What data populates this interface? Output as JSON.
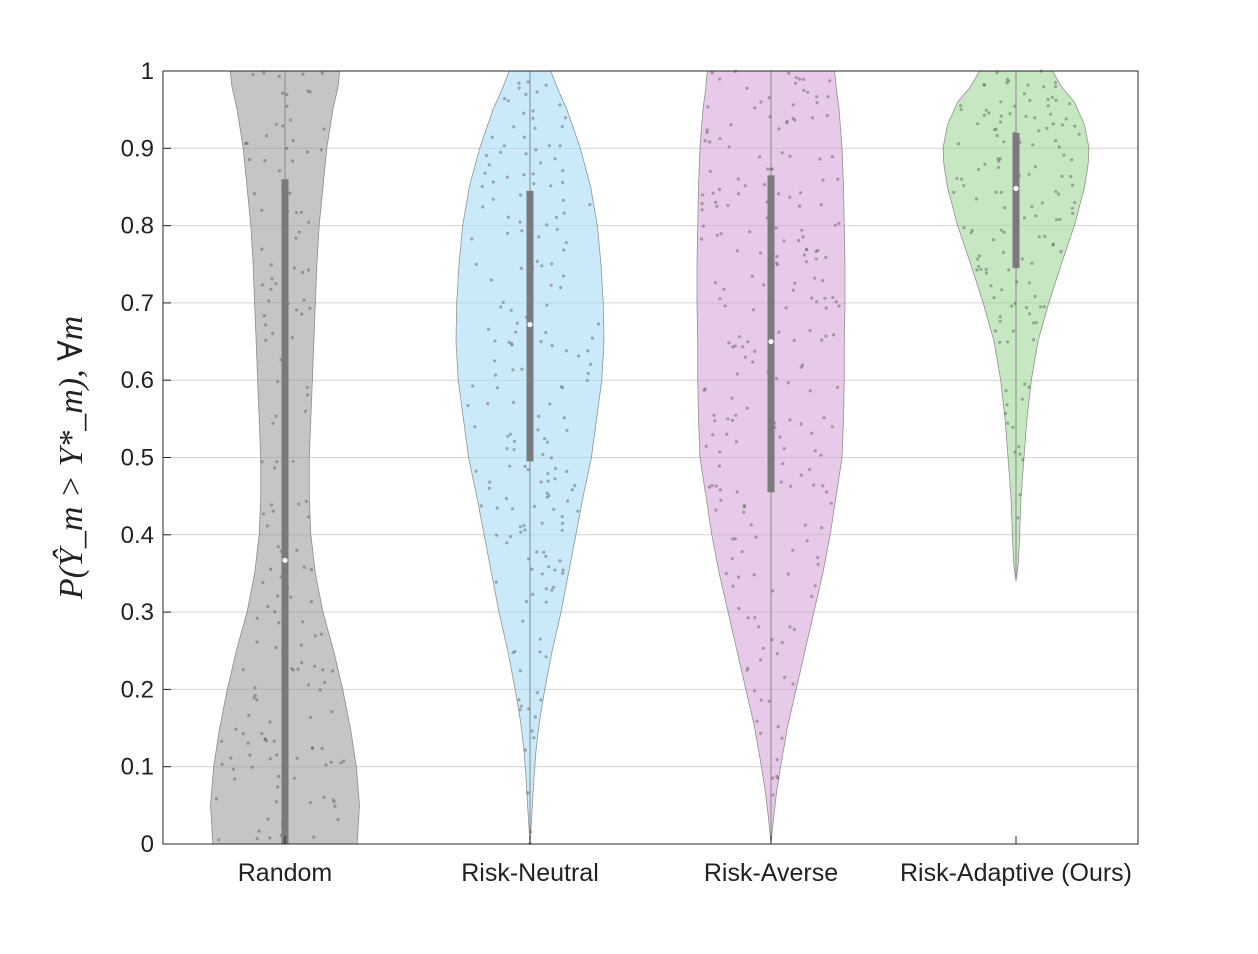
{
  "chart_data": {
    "type": "violin",
    "ylabel": "P(Ŷ_m > Y*_m),  ∀m",
    "ylim": [
      0,
      1
    ],
    "yticks": [
      0,
      0.1,
      0.2,
      0.3,
      0.4,
      0.5,
      0.6,
      0.7,
      0.8,
      0.9,
      1
    ],
    "ytick_labels": [
      "0",
      "0.1",
      "0.2",
      "0.3",
      "0.4",
      "0.5",
      "0.6",
      "0.7",
      "0.8",
      "0.9",
      "1"
    ],
    "grid": true,
    "categories": [
      "Random",
      "Risk-Neutral",
      "Risk-Averse",
      "Risk-Adaptive (Ours)"
    ],
    "series": [
      {
        "color": "#9e9e9e",
        "median": 0.367,
        "q1": 0.0,
        "q3": 0.86,
        "density": [
          [
            0.0,
            0.95
          ],
          [
            0.05,
            0.98
          ],
          [
            0.1,
            0.94
          ],
          [
            0.15,
            0.86
          ],
          [
            0.2,
            0.76
          ],
          [
            0.25,
            0.64
          ],
          [
            0.3,
            0.5
          ],
          [
            0.35,
            0.4
          ],
          [
            0.4,
            0.34
          ],
          [
            0.45,
            0.32
          ],
          [
            0.5,
            0.32
          ],
          [
            0.55,
            0.34
          ],
          [
            0.6,
            0.36
          ],
          [
            0.65,
            0.38
          ],
          [
            0.7,
            0.4
          ],
          [
            0.75,
            0.42
          ],
          [
            0.8,
            0.45
          ],
          [
            0.85,
            0.5
          ],
          [
            0.9,
            0.55
          ],
          [
            0.95,
            0.63
          ],
          [
            0.98,
            0.7
          ],
          [
            1.0,
            0.72
          ]
        ]
      },
      {
        "color": "#a8dcf5",
        "median": 0.672,
        "q1": 0.495,
        "q3": 0.845,
        "density": [
          [
            0.0,
            0.0
          ],
          [
            0.03,
            0.02
          ],
          [
            0.08,
            0.05
          ],
          [
            0.12,
            0.08
          ],
          [
            0.16,
            0.13
          ],
          [
            0.2,
            0.2
          ],
          [
            0.25,
            0.3
          ],
          [
            0.3,
            0.42
          ],
          [
            0.35,
            0.52
          ],
          [
            0.4,
            0.62
          ],
          [
            0.45,
            0.72
          ],
          [
            0.5,
            0.83
          ],
          [
            0.55,
            0.9
          ],
          [
            0.6,
            0.97
          ],
          [
            0.65,
            1.0
          ],
          [
            0.7,
            0.99
          ],
          [
            0.75,
            0.96
          ],
          [
            0.8,
            0.91
          ],
          [
            0.85,
            0.82
          ],
          [
            0.9,
            0.68
          ],
          [
            0.95,
            0.5
          ],
          [
            0.98,
            0.36
          ],
          [
            1.0,
            0.28
          ]
        ]
      },
      {
        "color": "#d7a6d9",
        "median": 0.65,
        "q1": 0.455,
        "q3": 0.865,
        "density": [
          [
            0.0,
            0.0
          ],
          [
            0.03,
            0.03
          ],
          [
            0.07,
            0.08
          ],
          [
            0.1,
            0.13
          ],
          [
            0.15,
            0.22
          ],
          [
            0.2,
            0.34
          ],
          [
            0.25,
            0.46
          ],
          [
            0.3,
            0.58
          ],
          [
            0.35,
            0.7
          ],
          [
            0.4,
            0.8
          ],
          [
            0.45,
            0.88
          ],
          [
            0.5,
            0.96
          ],
          [
            0.55,
            0.98
          ],
          [
            0.6,
            0.99
          ],
          [
            0.65,
            0.99
          ],
          [
            0.7,
            1.0
          ],
          [
            0.75,
            1.0
          ],
          [
            0.8,
            0.99
          ],
          [
            0.85,
            0.98
          ],
          [
            0.9,
            0.96
          ],
          [
            0.95,
            0.92
          ],
          [
            0.98,
            0.88
          ],
          [
            1.0,
            0.86
          ]
        ]
      },
      {
        "color": "#a2d79b",
        "median": 0.848,
        "q1": 0.745,
        "q3": 0.92,
        "density": [
          [
            0.34,
            0.0
          ],
          [
            0.36,
            0.03
          ],
          [
            0.4,
            0.05
          ],
          [
            0.45,
            0.07
          ],
          [
            0.5,
            0.11
          ],
          [
            0.55,
            0.15
          ],
          [
            0.6,
            0.21
          ],
          [
            0.65,
            0.3
          ],
          [
            0.7,
            0.45
          ],
          [
            0.75,
            0.62
          ],
          [
            0.8,
            0.8
          ],
          [
            0.85,
            0.94
          ],
          [
            0.88,
            0.99
          ],
          [
            0.9,
            1.0
          ],
          [
            0.93,
            0.94
          ],
          [
            0.96,
            0.8
          ],
          [
            0.98,
            0.62
          ],
          [
            1.0,
            0.5
          ]
        ]
      }
    ]
  }
}
